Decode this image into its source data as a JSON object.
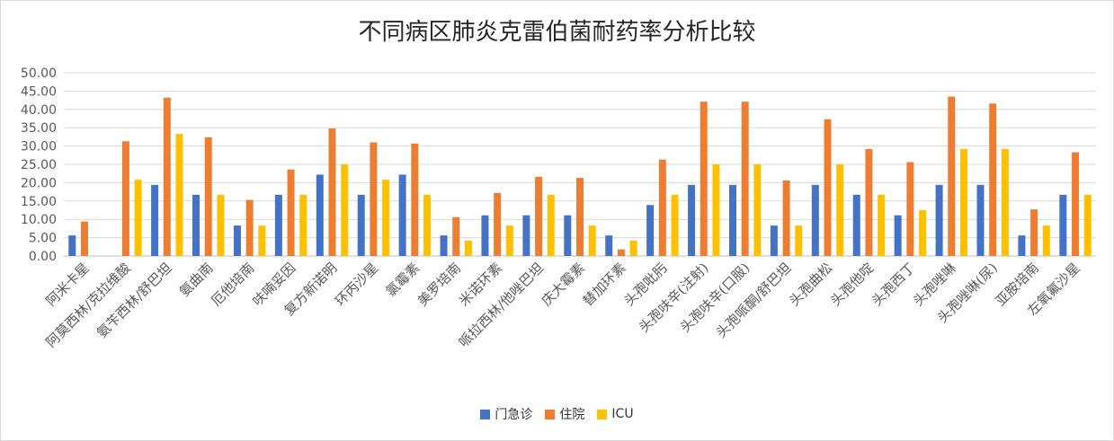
{
  "chart_data": {
    "type": "bar",
    "title": "不同病区肺炎克雷伯菌耐药率分析比较",
    "xlabel": "",
    "ylabel": "",
    "ylim": [
      0,
      50
    ],
    "yticks": [
      "0.00",
      "5.00",
      "10.00",
      "15.00",
      "20.00",
      "25.00",
      "30.00",
      "35.00",
      "40.00",
      "45.00",
      "50.00"
    ],
    "grid": true,
    "legend_position": "bottom",
    "categories": [
      "阿米卡星",
      "阿莫西林/克拉维酸",
      "氨苄西林/舒巴坦",
      "氨曲南",
      "厄他培南",
      "呋喃妥因",
      "复方新诺明",
      "环丙沙星",
      "氯霉素",
      "美罗培南",
      "米诺环素",
      "哌拉西林/他唑巴坦",
      "庆大霉素",
      "替加环素",
      "头孢吡肟",
      "头孢呋辛(注射)",
      "头孢呋辛(口服)",
      "头孢哌酮/舒巴坦",
      "头孢曲松",
      "头孢他啶",
      "头孢西丁",
      "头孢唑啉",
      "头孢唑啉(尿)",
      "亚胺培南",
      "左氧氟沙星"
    ],
    "series": [
      {
        "name": "门急诊",
        "color": "#4472C4",
        "values": [
          5.6,
          0,
          19.4,
          16.7,
          8.3,
          16.7,
          22.2,
          16.7,
          22.2,
          5.6,
          11.1,
          11.1,
          11.1,
          5.6,
          13.9,
          19.4,
          19.4,
          8.3,
          19.4,
          16.7,
          11.1,
          19.4,
          19.4,
          5.6,
          16.7
        ]
      },
      {
        "name": "住院",
        "color": "#ED7D31",
        "values": [
          9.4,
          31.3,
          43.2,
          32.4,
          15.3,
          23.6,
          34.8,
          31.0,
          30.7,
          10.6,
          17.2,
          21.6,
          21.3,
          1.8,
          26.3,
          42.1,
          42.1,
          20.6,
          37.3,
          29.2,
          25.6,
          43.5,
          41.6,
          12.7,
          28.3
        ]
      },
      {
        "name": "ICU",
        "color": "#FFC000",
        "values": [
          0,
          20.8,
          33.3,
          16.7,
          8.3,
          16.7,
          25.0,
          20.8,
          16.7,
          4.2,
          8.3,
          16.7,
          8.3,
          4.2,
          16.7,
          25.0,
          25.0,
          8.3,
          25.0,
          16.7,
          12.5,
          29.2,
          29.2,
          8.3,
          16.7
        ]
      }
    ]
  }
}
